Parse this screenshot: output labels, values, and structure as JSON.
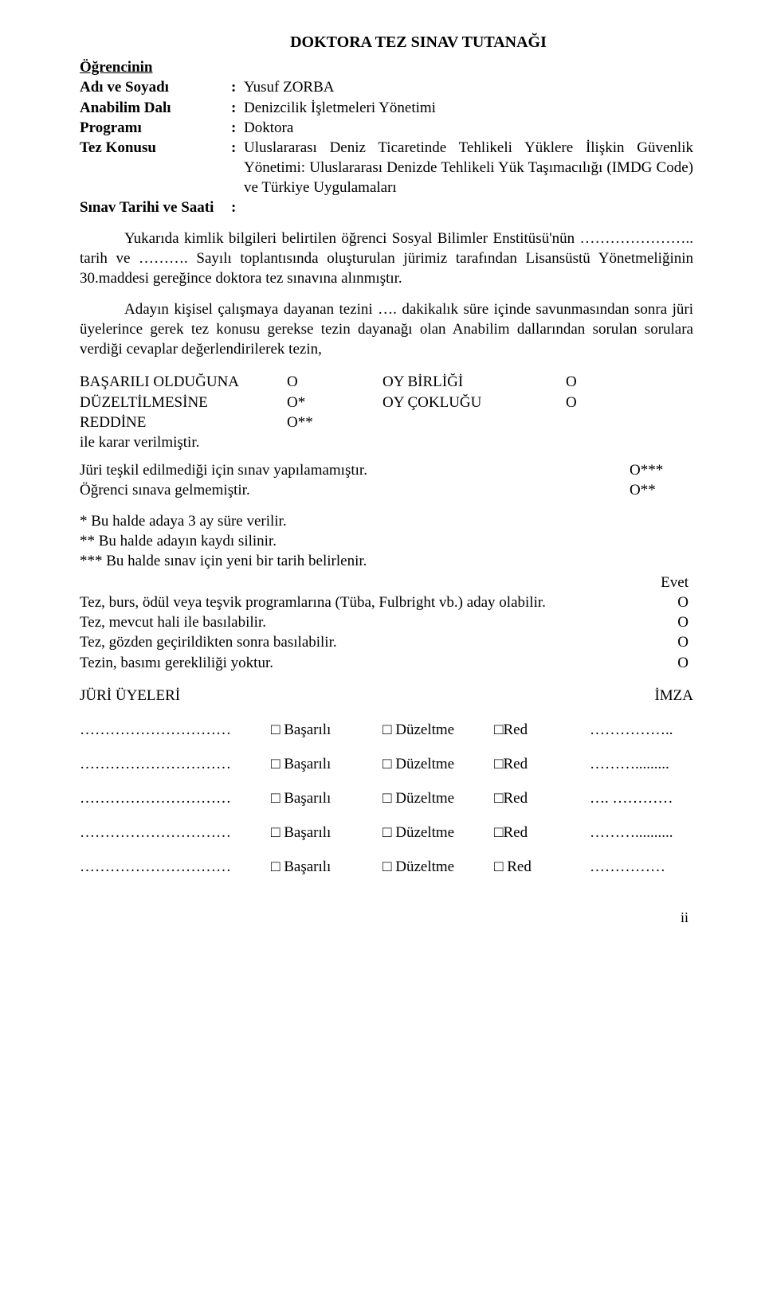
{
  "title": "DOKTORA TEZ SINAV TUTANAĞI",
  "heading_student": "Öğrencinin",
  "info": {
    "name_label": "Adı ve Soyadı",
    "name_value": "Yusuf ZORBA",
    "dept_label": "Anabilim Dalı",
    "dept_value": "Denizcilik İşletmeleri Yönetimi",
    "program_label": "Programı",
    "program_value": "Doktora",
    "thesis_label": "Tez Konusu",
    "thesis_value": "Uluslararası Deniz Ticaretinde Tehlikeli Yüklere İlişkin Güvenlik Yönetimi: Uluslararası Denizde Tehlikeli Yük Taşımacılığı (IMDG Code) ve Türkiye Uygulamaları",
    "date_label": "Sınav Tarihi ve Saati",
    "colon": ":"
  },
  "para1": "Yukarıda kimlik bilgileri belirtilen öğrenci Sosyal Bilimler Enstitüsü'nün ………………….. tarih ve ………. Sayılı toplantısında oluşturulan jürimiz tarafından Lisansüstü Yönetmeliğinin 30.maddesi gereğince doktora tez sınavına alınmıştır.",
  "para2": "Adayın kişisel çalışmaya dayanan tezini …. dakikalık süre içinde savunmasından sonra jüri üyelerince gerek tez konusu gerekse tezin dayanağı olan Anabilim dallarından sorulan sorulara verdiği cevaplar değerlendirilerek tezin,",
  "decisions": {
    "r1l": "BAŞARILI OLDUĞUNA",
    "r1lm": "Ο",
    "r1r": "OY BİRLİĞİ",
    "r1rm": "Ο",
    "r2l": "DÜZELTİLMESİNE",
    "r2lm": "Ο*",
    "r2r": "OY ÇOKLUĞU",
    "r2rm": "Ο",
    "r3l": "REDDİNE",
    "r3lm": "Ο**",
    "closing": "ile karar verilmiştir."
  },
  "extra": {
    "line1": "Jüri teşkil edilmediği için sınav yapılamamıştır.",
    "mark1": "Ο***",
    "line2": "Öğrenci sınava gelmemiştir.",
    "mark2": "Ο**"
  },
  "notes": {
    "n1": "* Bu halde adaya 3 ay süre verilir.",
    "n2": "** Bu halde adayın kaydı silinir.",
    "n3": "*** Bu halde sınav için yeni bir tarih belirlenir."
  },
  "evet": {
    "header": "Evet",
    "r1": "Tez, burs, ödül veya teşvik programlarına (Tüba, Fulbright vb.) aday olabilir.",
    "r2": "Tez, mevcut hali ile basılabilir.",
    "r3": "Tez, gözden geçirildikten sonra basılabilir.",
    "r4": "Tezin, basımı gerekliliği yoktur.",
    "mark": "Ο"
  },
  "jury": {
    "title": "JÜRİ ÜYELERİ",
    "sig": "İMZA",
    "name_ph": "…………………………",
    "opt1": "□ Başarılı",
    "opt2": "□ Düzeltme",
    "opt3": "□Red",
    "opt3b": "□ Red",
    "sig_ph_a": "……………..",
    "sig_ph_b": "……….........",
    "sig_ph_c": "…. …………",
    "sig_ph_d": "………..........",
    "sig_ph_e": "……………"
  },
  "page_number": "ii"
}
